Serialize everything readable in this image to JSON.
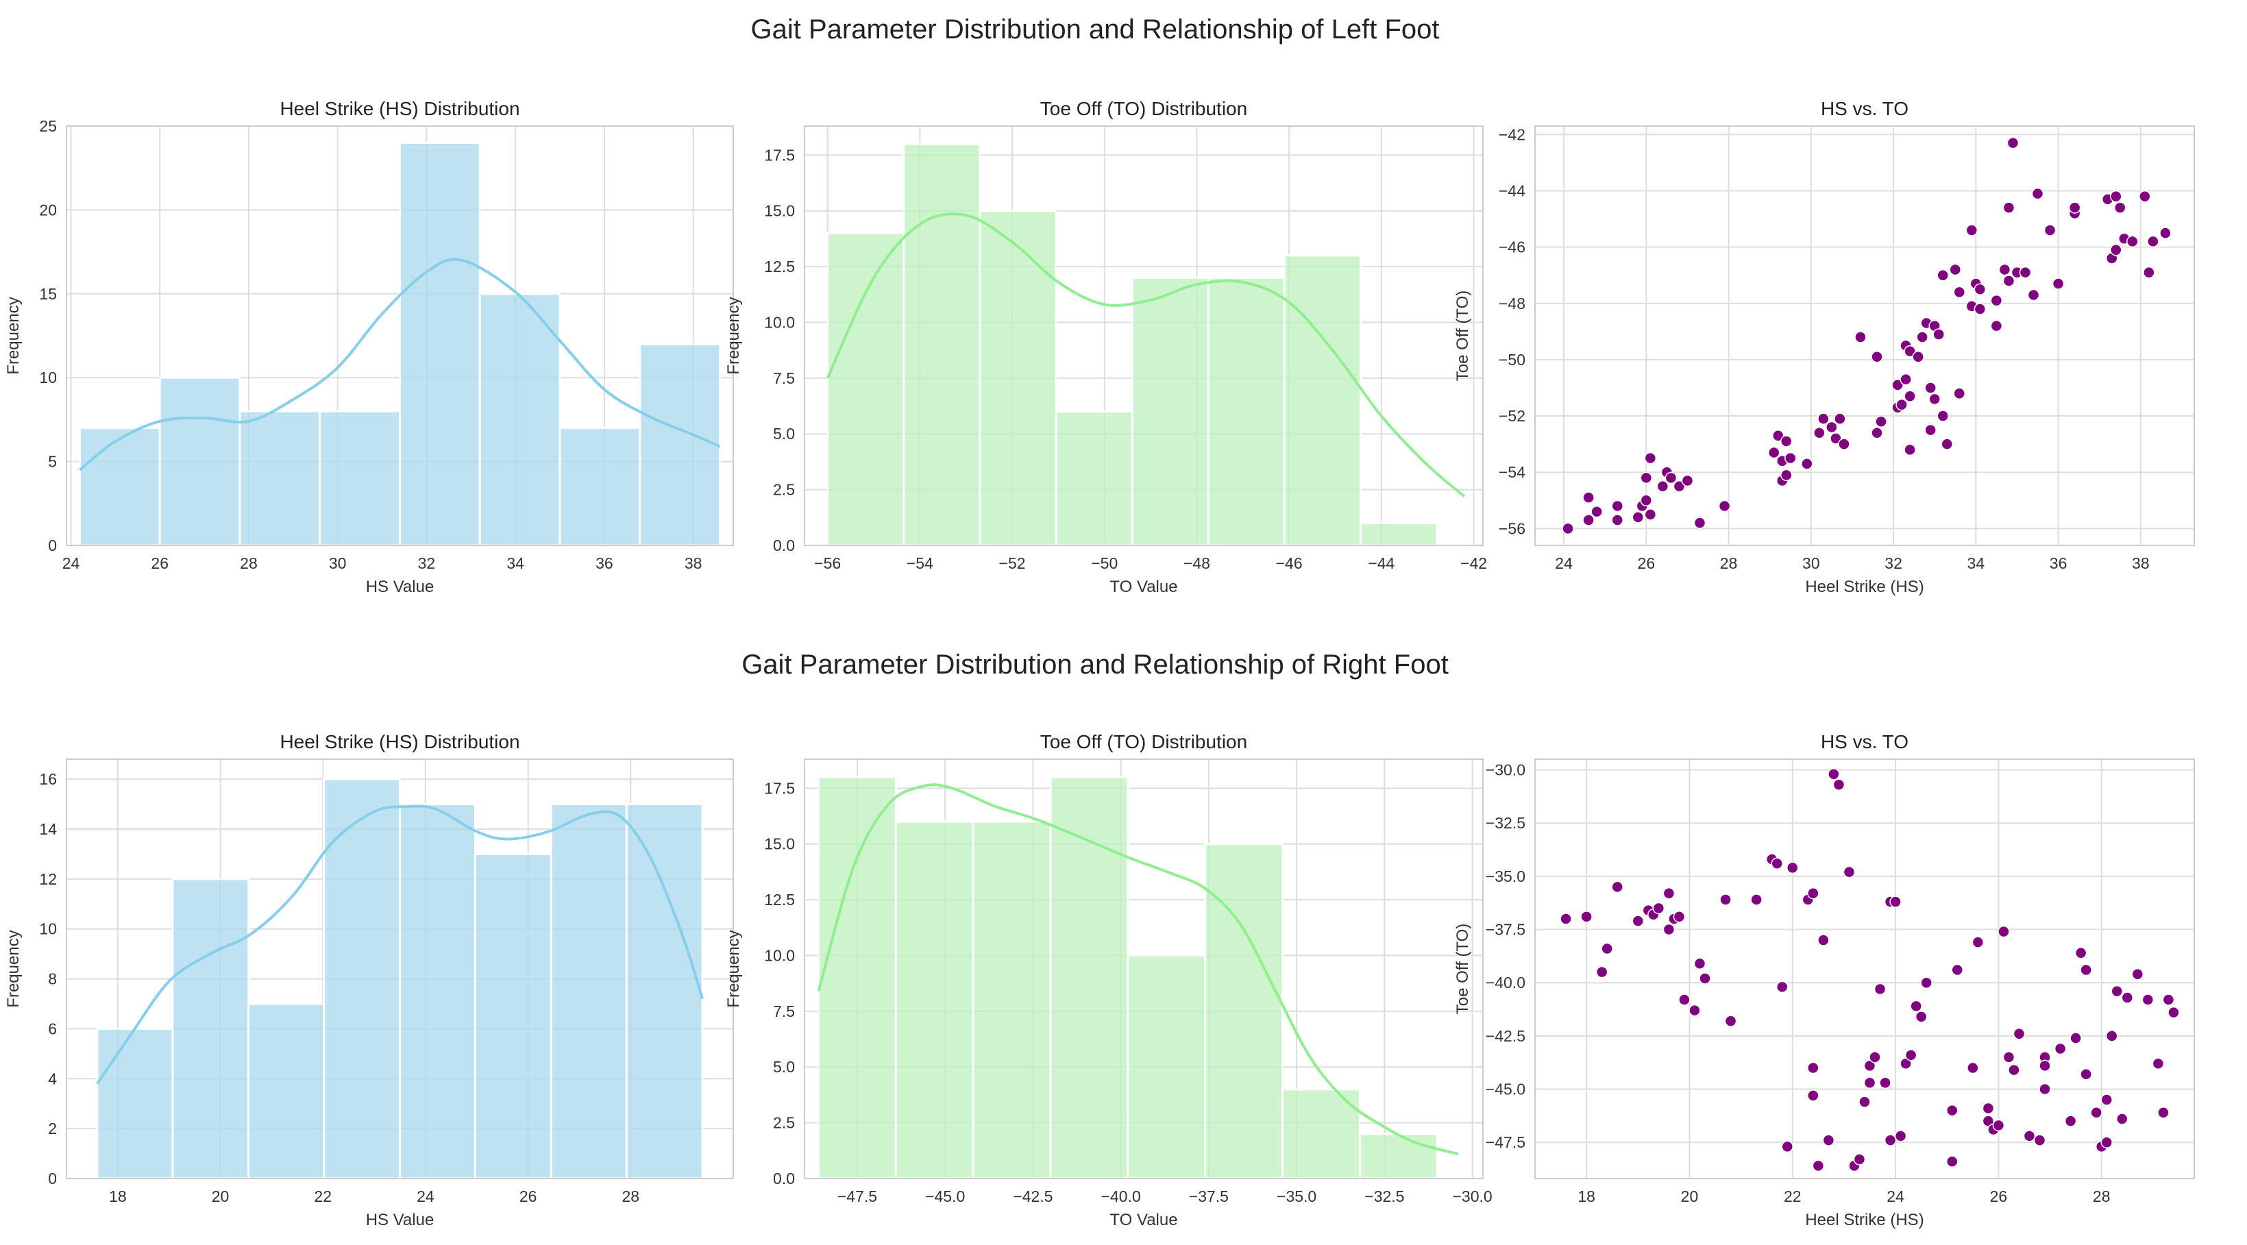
{
  "figure": {
    "left_title": "Gait Parameter Distribution and Relationship of Left Foot",
    "right_title": "Gait Parameter Distribution and Relationship of Right Foot"
  },
  "colors": {
    "hs_bar": "#a9d8ee",
    "hs_kde": "#87ceeb",
    "to_bar": "#bdf0bd",
    "to_kde": "#90ee90",
    "scatter": "#800080",
    "grid": "#dddddd",
    "text": "#222222"
  },
  "chart_data": [
    {
      "id": "left-hs",
      "type": "bar",
      "title": "Heel Strike (HS) Distribution",
      "xlabel": "HS Value",
      "ylabel": "Frequency",
      "xlim": [
        23.9,
        38.9
      ],
      "ylim": [
        0,
        25
      ],
      "xticks": [
        24,
        26,
        28,
        30,
        32,
        34,
        36,
        38
      ],
      "xtick_labels": [
        "24",
        "26",
        "28",
        "30",
        "32",
        "34",
        "36",
        "38"
      ],
      "yticks": [
        0,
        5,
        10,
        15,
        20,
        25
      ],
      "ytick_labels": [
        "0",
        "5",
        "10",
        "15",
        "20",
        "25"
      ],
      "bin_edges": [
        24.2,
        26.0,
        27.8,
        29.6,
        31.4,
        33.2,
        35.0,
        36.8,
        38.6
      ],
      "values": [
        7,
        10,
        8,
        8,
        24,
        15,
        7,
        12
      ],
      "kde": {
        "x": [
          24.2,
          25.0,
          26.0,
          27.0,
          28.0,
          29.0,
          30.0,
          31.0,
          32.0,
          32.8,
          34.0,
          35.0,
          36.0,
          37.0,
          38.0,
          38.6
        ],
        "y": [
          4.5,
          6.2,
          7.4,
          7.6,
          7.4,
          8.7,
          10.6,
          13.8,
          16.3,
          17.0,
          15.1,
          12.2,
          9.3,
          7.7,
          6.6,
          5.9
        ]
      }
    },
    {
      "id": "left-to",
      "type": "bar",
      "title": "Toe Off (TO) Distribution",
      "xlabel": "TO Value",
      "ylabel": "Frequency",
      "xlim": [
        -56.5,
        -41.8
      ],
      "ylim": [
        0,
        18.8
      ],
      "xticks": [
        -56,
        -54,
        -52,
        -50,
        -48,
        -46,
        -44,
        -42
      ],
      "xtick_labels": [
        "−56",
        "−54",
        "−52",
        "−50",
        "−48",
        "−46",
        "−44",
        "−42"
      ],
      "yticks": [
        0,
        2.5,
        5.0,
        7.5,
        10.0,
        12.5,
        15.0,
        17.5
      ],
      "ytick_labels": [
        "0.0",
        "2.5",
        "5.0",
        "7.5",
        "10.0",
        "12.5",
        "15.0",
        "17.5"
      ],
      "bin_edges": [
        -56.0,
        -54.35,
        -52.7,
        -51.05,
        -49.4,
        -47.75,
        -46.1,
        -44.45,
        -42.8
      ],
      "values": [
        14,
        18,
        15,
        6,
        12,
        12,
        13,
        1
      ],
      "kde": {
        "x": [
          -56.0,
          -55.0,
          -54.0,
          -53.0,
          -52.0,
          -51.0,
          -50.0,
          -49.0,
          -48.0,
          -47.0,
          -46.0,
          -45.0,
          -44.0,
          -43.0,
          -42.2
        ],
        "y": [
          7.5,
          12.0,
          14.4,
          14.8,
          13.6,
          11.8,
          10.8,
          11.0,
          11.7,
          11.8,
          10.9,
          8.6,
          5.8,
          3.6,
          2.2
        ]
      }
    },
    {
      "id": "left-scatter",
      "type": "scatter",
      "title": "HS vs. TO",
      "xlabel": "Heel Strike (HS)",
      "ylabel": "Toe Off (TO)",
      "xlim": [
        23.3,
        39.3
      ],
      "ylim": [
        -56.6,
        -41.7
      ],
      "xticks": [
        24,
        26,
        28,
        30,
        32,
        34,
        36,
        38
      ],
      "xtick_labels": [
        "24",
        "26",
        "28",
        "30",
        "32",
        "34",
        "36",
        "38"
      ],
      "yticks": [
        -56,
        -54,
        -52,
        -50,
        -48,
        -46,
        -44,
        -42
      ],
      "ytick_labels": [
        "−56",
        "−54",
        "−52",
        "−50",
        "−48",
        "−46",
        "−44",
        "−42"
      ],
      "points": [
        [
          24.1,
          -56.0
        ],
        [
          24.6,
          -55.7
        ],
        [
          24.6,
          -54.9
        ],
        [
          24.8,
          -55.4
        ],
        [
          25.3,
          -55.2
        ],
        [
          25.3,
          -55.7
        ],
        [
          25.8,
          -55.6
        ],
        [
          25.9,
          -55.2
        ],
        [
          26.0,
          -55.0
        ],
        [
          26.0,
          -54.2
        ],
        [
          26.1,
          -55.5
        ],
        [
          26.1,
          -53.5
        ],
        [
          26.4,
          -54.5
        ],
        [
          26.5,
          -54.0
        ],
        [
          26.6,
          -54.2
        ],
        [
          26.8,
          -54.5
        ],
        [
          27.0,
          -54.3
        ],
        [
          27.3,
          -55.8
        ],
        [
          27.9,
          -55.2
        ],
        [
          29.1,
          -53.3
        ],
        [
          29.2,
          -52.7
        ],
        [
          29.3,
          -53.6
        ],
        [
          29.3,
          -54.3
        ],
        [
          29.4,
          -52.9
        ],
        [
          29.4,
          -54.1
        ],
        [
          29.5,
          -53.5
        ],
        [
          29.9,
          -53.7
        ],
        [
          30.2,
          -52.6
        ],
        [
          30.3,
          -52.1
        ],
        [
          30.5,
          -52.4
        ],
        [
          30.6,
          -52.8
        ],
        [
          30.7,
          -52.1
        ],
        [
          30.8,
          -53.0
        ],
        [
          31.2,
          -49.2
        ],
        [
          31.6,
          -49.9
        ],
        [
          31.6,
          -52.6
        ],
        [
          31.7,
          -52.2
        ],
        [
          32.1,
          -51.7
        ],
        [
          32.1,
          -50.9
        ],
        [
          32.2,
          -51.6
        ],
        [
          32.3,
          -49.5
        ],
        [
          32.3,
          -50.7
        ],
        [
          32.4,
          -51.3
        ],
        [
          32.4,
          -49.7
        ],
        [
          32.4,
          -53.2
        ],
        [
          32.6,
          -49.9
        ],
        [
          32.7,
          -49.2
        ],
        [
          32.8,
          -48.7
        ],
        [
          32.9,
          -51.0
        ],
        [
          32.9,
          -52.5
        ],
        [
          33.0,
          -48.8
        ],
        [
          33.0,
          -51.4
        ],
        [
          33.1,
          -49.1
        ],
        [
          33.2,
          -47.0
        ],
        [
          33.2,
          -52.0
        ],
        [
          33.3,
          -53.0
        ],
        [
          33.5,
          -46.8
        ],
        [
          33.6,
          -47.6
        ],
        [
          33.6,
          -51.2
        ],
        [
          33.9,
          -48.1
        ],
        [
          33.9,
          -45.4
        ],
        [
          34.0,
          -47.3
        ],
        [
          34.1,
          -47.5
        ],
        [
          34.1,
          -48.2
        ],
        [
          34.5,
          -47.9
        ],
        [
          34.5,
          -48.8
        ],
        [
          34.7,
          -46.8
        ],
        [
          34.8,
          -44.6
        ],
        [
          34.8,
          -47.2
        ],
        [
          34.9,
          -42.3
        ],
        [
          35.0,
          -46.9
        ],
        [
          35.2,
          -46.9
        ],
        [
          35.4,
          -47.7
        ],
        [
          35.5,
          -44.1
        ],
        [
          35.8,
          -45.4
        ],
        [
          36.0,
          -47.3
        ],
        [
          36.4,
          -44.8
        ],
        [
          36.4,
          -44.6
        ],
        [
          37.2,
          -44.3
        ],
        [
          37.3,
          -46.4
        ],
        [
          37.4,
          -44.2
        ],
        [
          37.4,
          -46.1
        ],
        [
          37.5,
          -44.6
        ],
        [
          37.6,
          -45.7
        ],
        [
          37.8,
          -45.8
        ],
        [
          38.1,
          -44.2
        ],
        [
          38.2,
          -46.9
        ],
        [
          38.3,
          -45.8
        ],
        [
          38.6,
          -45.5
        ]
      ]
    },
    {
      "id": "right-hs",
      "type": "bar",
      "title": "Heel Strike (HS) Distribution",
      "xlabel": "HS Value",
      "ylabel": "Frequency",
      "xlim": [
        17.0,
        30.0
      ],
      "ylim": [
        0,
        16.8
      ],
      "xticks": [
        18,
        20,
        22,
        24,
        26,
        28
      ],
      "xtick_labels": [
        "18",
        "20",
        "22",
        "24",
        "26",
        "28"
      ],
      "yticks": [
        0,
        2,
        4,
        6,
        8,
        10,
        12,
        14,
        16
      ],
      "ytick_labels": [
        "0",
        "2",
        "4",
        "6",
        "8",
        "10",
        "12",
        "14",
        "16"
      ],
      "bin_edges": [
        17.6,
        19.07,
        20.55,
        22.02,
        23.5,
        24.97,
        26.45,
        27.92,
        29.4
      ],
      "values": [
        6,
        12,
        7,
        16,
        15,
        13,
        15,
        15
      ],
      "kde": {
        "x": [
          17.6,
          18.2,
          19.0,
          19.8,
          20.6,
          21.4,
          22.2,
          23.0,
          23.6,
          24.2,
          25.0,
          25.6,
          26.4,
          27.2,
          27.8,
          28.4,
          29.0,
          29.4
        ],
        "y": [
          3.8,
          5.6,
          7.9,
          9.0,
          9.8,
          11.3,
          13.5,
          14.7,
          14.9,
          14.8,
          13.9,
          13.6,
          13.9,
          14.6,
          14.5,
          12.8,
          9.8,
          7.2
        ]
      }
    },
    {
      "id": "right-to",
      "type": "bar",
      "title": "Toe Off (TO) Distribution",
      "xlabel": "TO Value",
      "ylabel": "Frequency",
      "xlim": [
        -49.0,
        -29.7
      ],
      "ylim": [
        0,
        18.8
      ],
      "xticks": [
        -47.5,
        -45.0,
        -42.5,
        -40.0,
        -37.5,
        -35.0,
        -32.5,
        -30.0
      ],
      "xtick_labels": [
        "−47.5",
        "−45.0",
        "−42.5",
        "−40.0",
        "−37.5",
        "−35.0",
        "−32.5",
        "−30.0"
      ],
      "yticks": [
        0,
        2.5,
        5.0,
        7.5,
        10.0,
        12.5,
        15.0,
        17.5
      ],
      "ytick_labels": [
        "0.0",
        "2.5",
        "5.0",
        "7.5",
        "10.0",
        "12.5",
        "15.0",
        "17.5"
      ],
      "bin_edges": [
        -48.6,
        -46.4,
        -44.2,
        -42.0,
        -39.8,
        -37.6,
        -35.4,
        -33.2,
        -31.0
      ],
      "values": [
        18,
        16,
        16,
        18,
        10,
        15,
        4,
        2
      ],
      "kde": {
        "x": [
          -48.6,
          -47.6,
          -46.6,
          -45.6,
          -44.8,
          -43.6,
          -42.4,
          -41.0,
          -39.8,
          -38.6,
          -37.6,
          -36.6,
          -35.6,
          -34.6,
          -33.6,
          -32.6,
          -31.6,
          -30.4
        ],
        "y": [
          8.4,
          14.0,
          16.8,
          17.6,
          17.5,
          16.7,
          16.1,
          15.2,
          14.4,
          13.7,
          13.0,
          11.4,
          8.4,
          5.4,
          3.5,
          2.4,
          1.6,
          1.1
        ]
      }
    },
    {
      "id": "right-scatter",
      "type": "scatter",
      "title": "HS vs. TO",
      "xlabel": "Heel Strike (HS)",
      "ylabel": "Toe Off (TO)",
      "xlim": [
        17.0,
        29.8
      ],
      "ylim": [
        -49.2,
        -29.5
      ],
      "xticks": [
        18,
        20,
        22,
        24,
        26,
        28
      ],
      "xtick_labels": [
        "18",
        "20",
        "22",
        "24",
        "26",
        "28"
      ],
      "yticks": [
        -30.0,
        -32.5,
        -35.0,
        -37.5,
        -40.0,
        -42.5,
        -45.0,
        -47.5
      ],
      "ytick_labels": [
        "−30.0",
        "−32.5",
        "−35.0",
        "−37.5",
        "−40.0",
        "−42.5",
        "−45.0",
        "−47.5"
      ],
      "points": [
        [
          17.6,
          -37.0
        ],
        [
          18.0,
          -36.9
        ],
        [
          18.3,
          -39.5
        ],
        [
          18.4,
          -38.4
        ],
        [
          18.6,
          -35.5
        ],
        [
          19.0,
          -37.1
        ],
        [
          19.2,
          -36.6
        ],
        [
          19.3,
          -36.8
        ],
        [
          19.4,
          -36.5
        ],
        [
          19.6,
          -37.5
        ],
        [
          19.6,
          -35.8
        ],
        [
          19.7,
          -37.0
        ],
        [
          19.8,
          -36.9
        ],
        [
          19.9,
          -40.8
        ],
        [
          20.1,
          -41.3
        ],
        [
          20.2,
          -39.1
        ],
        [
          20.3,
          -39.8
        ],
        [
          20.7,
          -36.1
        ],
        [
          20.8,
          -41.8
        ],
        [
          21.3,
          -36.1
        ],
        [
          21.6,
          -34.2
        ],
        [
          21.7,
          -34.4
        ],
        [
          21.8,
          -40.2
        ],
        [
          21.9,
          -47.7
        ],
        [
          22.0,
          -34.6
        ],
        [
          22.3,
          -36.1
        ],
        [
          22.4,
          -35.8
        ],
        [
          22.4,
          -45.3
        ],
        [
          22.4,
          -44.0
        ],
        [
          22.5,
          -48.6
        ],
        [
          22.6,
          -38.0
        ],
        [
          22.7,
          -47.4
        ],
        [
          22.8,
          -30.2
        ],
        [
          22.9,
          -30.7
        ],
        [
          23.1,
          -34.8
        ],
        [
          23.2,
          -48.6
        ],
        [
          23.3,
          -48.3
        ],
        [
          23.4,
          -45.6
        ],
        [
          23.5,
          -44.7
        ],
        [
          23.5,
          -43.9
        ],
        [
          23.6,
          -43.5
        ],
        [
          23.7,
          -40.3
        ],
        [
          23.8,
          -44.7
        ],
        [
          23.9,
          -36.2
        ],
        [
          23.9,
          -47.4
        ],
        [
          24.0,
          -36.2
        ],
        [
          24.1,
          -47.2
        ],
        [
          24.2,
          -43.8
        ],
        [
          24.3,
          -43.4
        ],
        [
          24.4,
          -41.1
        ],
        [
          24.5,
          -41.6
        ],
        [
          24.6,
          -40.0
        ],
        [
          25.1,
          -46.0
        ],
        [
          25.1,
          -48.4
        ],
        [
          25.2,
          -39.4
        ],
        [
          25.5,
          -44.0
        ],
        [
          25.6,
          -38.1
        ],
        [
          25.8,
          -45.9
        ],
        [
          25.8,
          -46.5
        ],
        [
          25.9,
          -46.9
        ],
        [
          26.0,
          -46.7
        ],
        [
          26.1,
          -37.6
        ],
        [
          26.2,
          -43.5
        ],
        [
          26.3,
          -44.1
        ],
        [
          26.4,
          -42.4
        ],
        [
          26.6,
          -47.2
        ],
        [
          26.8,
          -47.4
        ],
        [
          26.9,
          -43.5
        ],
        [
          26.9,
          -45.0
        ],
        [
          26.9,
          -43.9
        ],
        [
          27.2,
          -43.1
        ],
        [
          27.4,
          -46.5
        ],
        [
          27.5,
          -42.6
        ],
        [
          27.6,
          -38.6
        ],
        [
          27.7,
          -39.4
        ],
        [
          27.7,
          -44.3
        ],
        [
          27.9,
          -46.1
        ],
        [
          28.0,
          -47.7
        ],
        [
          28.1,
          -47.5
        ],
        [
          28.1,
          -45.5
        ],
        [
          28.2,
          -42.5
        ],
        [
          28.3,
          -40.4
        ],
        [
          28.4,
          -46.4
        ],
        [
          28.5,
          -40.7
        ],
        [
          28.7,
          -39.6
        ],
        [
          28.9,
          -40.8
        ],
        [
          29.1,
          -43.8
        ],
        [
          29.2,
          -46.1
        ],
        [
          29.3,
          -40.8
        ],
        [
          29.4,
          -41.4
        ]
      ]
    }
  ]
}
